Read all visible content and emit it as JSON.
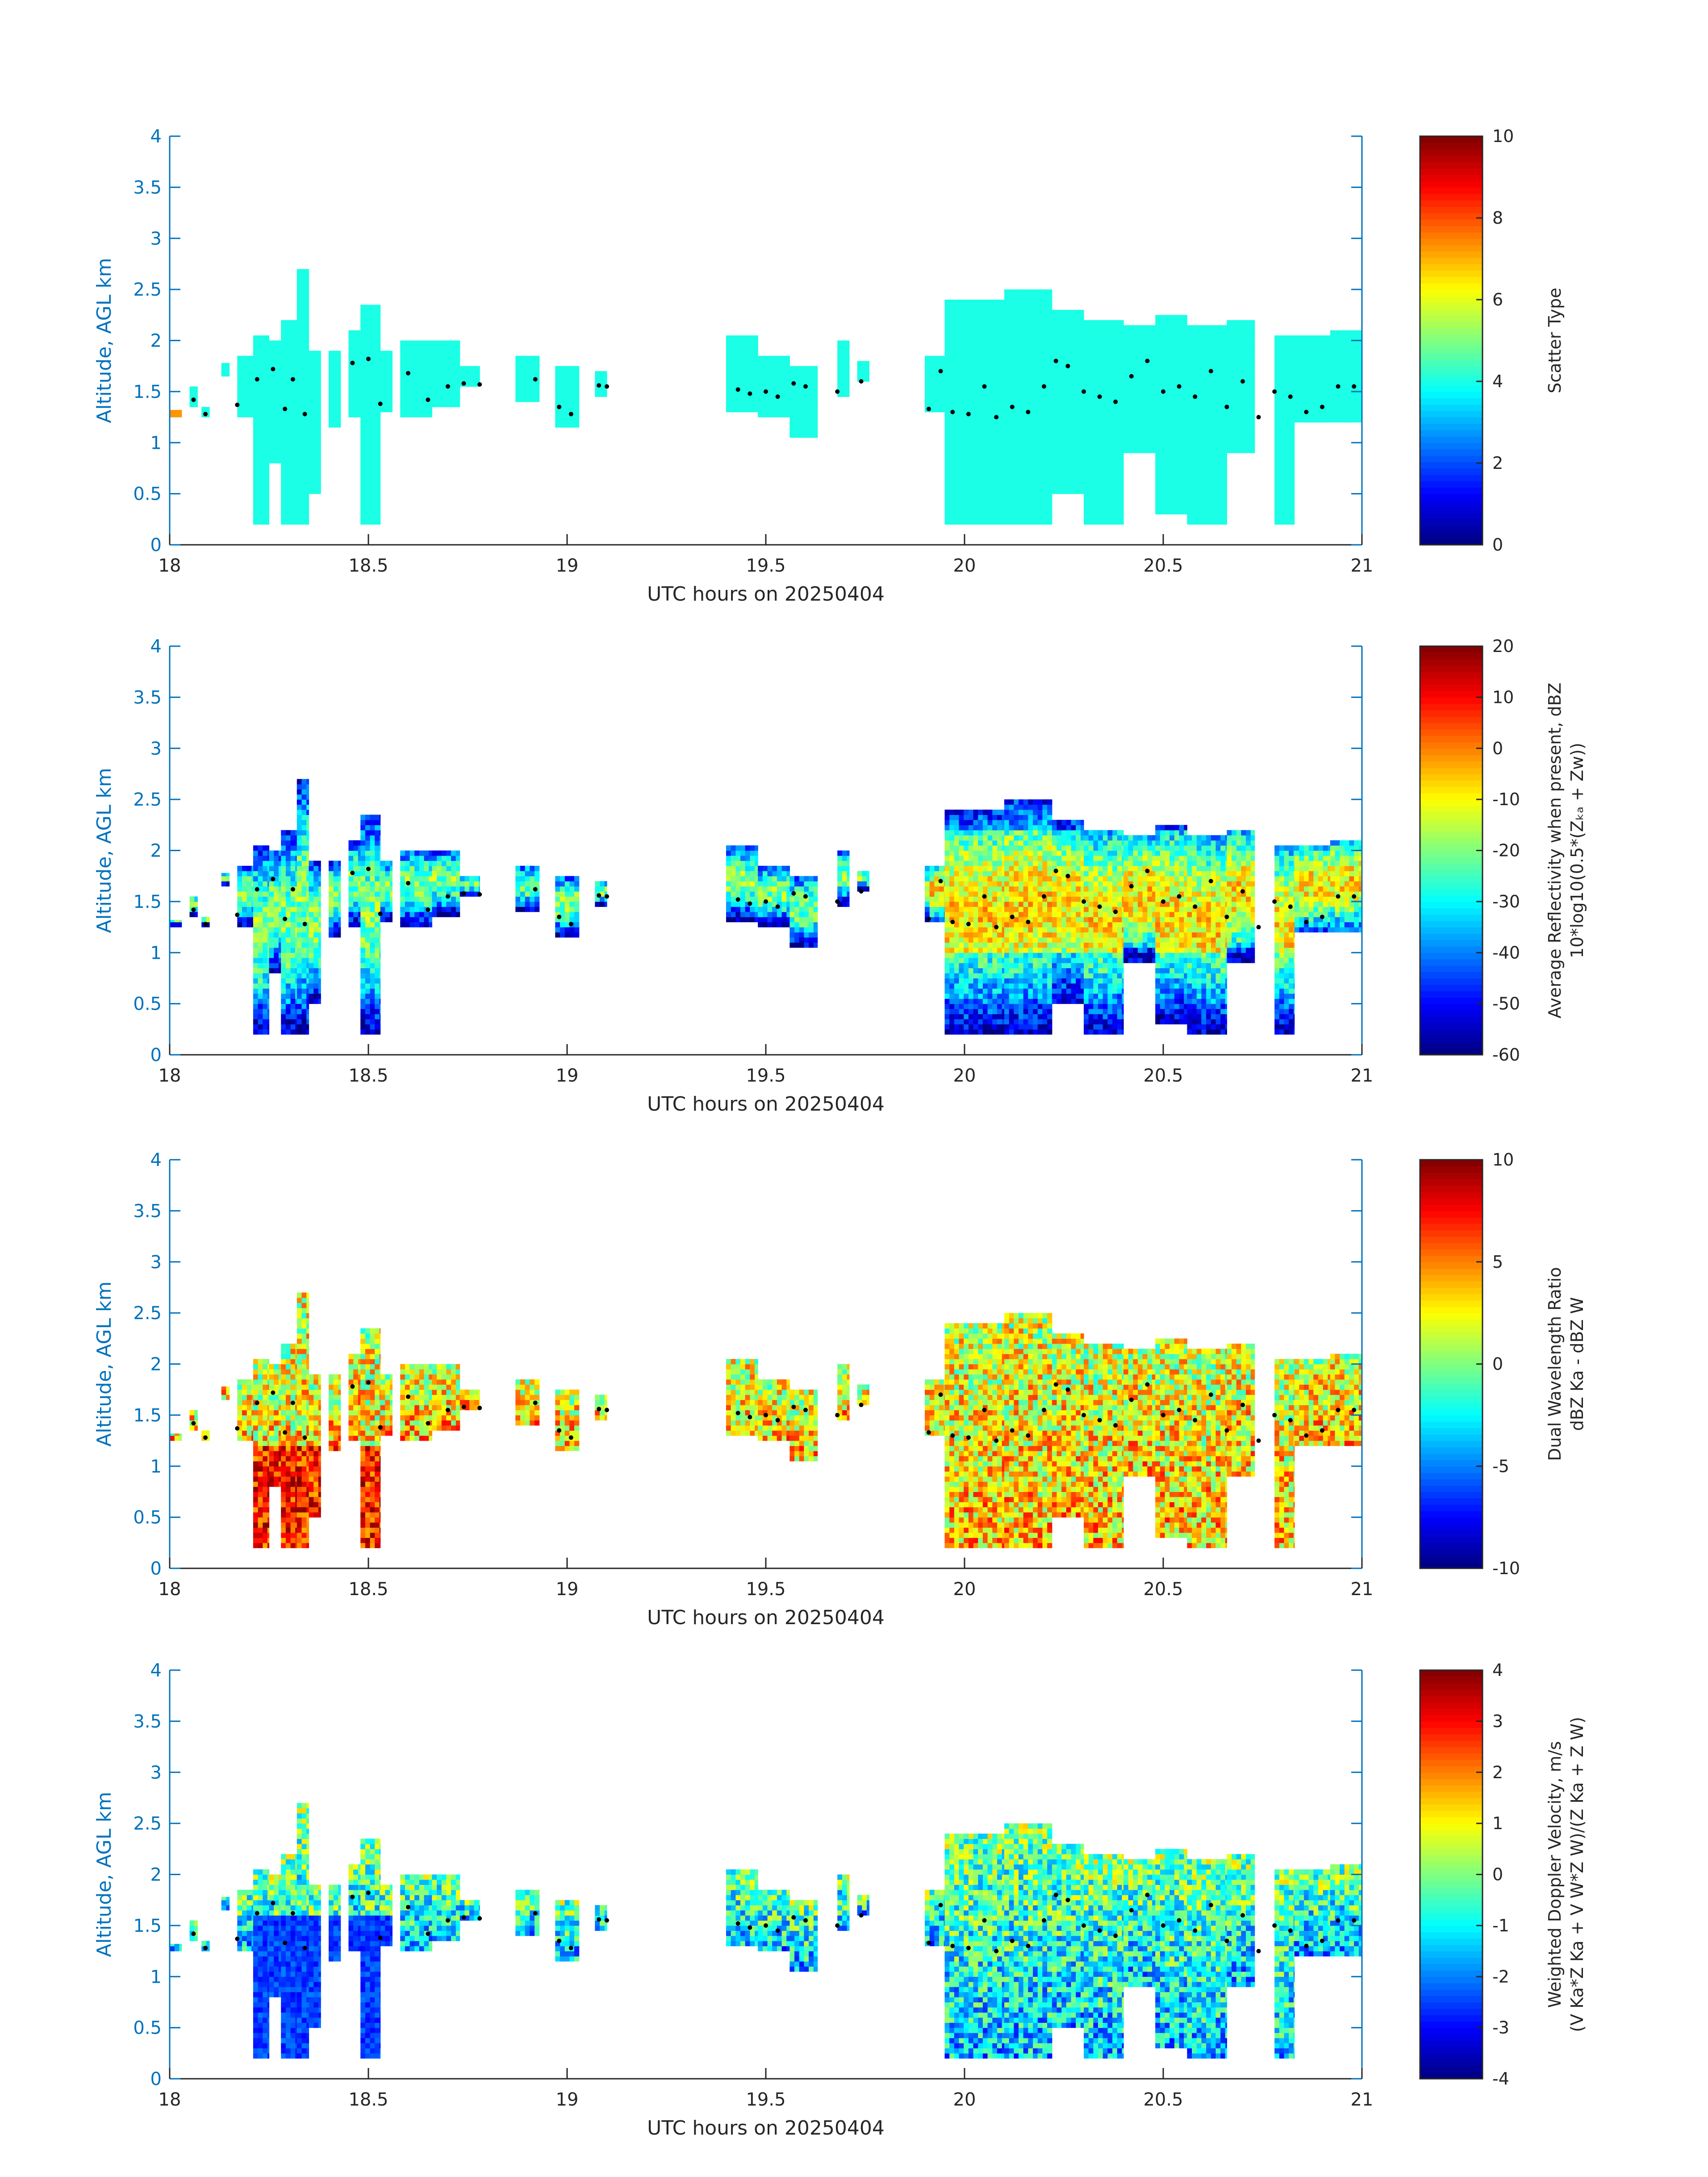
{
  "chart_data": [
    {
      "type": "heatmap",
      "xlabel": "UTC hours on 20250404",
      "ylabel": "Altitude, AGL km",
      "xlim": [
        18,
        21
      ],
      "ylim": [
        0,
        4
      ],
      "xticks": [
        "18",
        "18.5",
        "19",
        "19.5",
        "20",
        "20.5",
        "21"
      ],
      "yticks": [
        "0",
        "0.5",
        "1",
        "1.5",
        "2",
        "2.5",
        "3",
        "3.5",
        "4"
      ],
      "colorbar": {
        "label": "Scatter Type",
        "label2": "",
        "range": [
          0,
          10
        ],
        "ticks": [
          "0",
          "2",
          "4",
          "6",
          "8",
          "10"
        ]
      },
      "field": "scatter_type"
    },
    {
      "type": "heatmap",
      "xlabel": "UTC hours on 20250404",
      "ylabel": "Altitude, AGL km",
      "xlim": [
        18,
        21
      ],
      "ylim": [
        0,
        4
      ],
      "xticks": [
        "18",
        "18.5",
        "19",
        "19.5",
        "20",
        "20.5",
        "21"
      ],
      "yticks": [
        "0",
        "0.5",
        "1",
        "1.5",
        "2",
        "2.5",
        "3",
        "3.5",
        "4"
      ],
      "colorbar": {
        "label": "Average Reflectivity when present, dBZ",
        "label2": "10*log10(0.5*(Zₖₐ + Zᴡ))",
        "range": [
          -60,
          20
        ],
        "ticks": [
          "-60",
          "-50",
          "-40",
          "-30",
          "-20",
          "-10",
          "0",
          "10",
          "20"
        ]
      },
      "field": "reflectivity"
    },
    {
      "type": "heatmap",
      "xlabel": "UTC hours on 20250404",
      "ylabel": "Altitude, AGL km",
      "xlim": [
        18,
        21
      ],
      "ylim": [
        0,
        4
      ],
      "xticks": [
        "18",
        "18.5",
        "19",
        "19.5",
        "20",
        "20.5",
        "21"
      ],
      "yticks": [
        "0",
        "0.5",
        "1",
        "1.5",
        "2",
        "2.5",
        "3",
        "3.5",
        "4"
      ],
      "colorbar": {
        "label": "Dual Wavelength Ratio",
        "label2": "dBZ Ka - dBZ W",
        "range": [
          -10,
          10
        ],
        "ticks": [
          "-10",
          "-5",
          "0",
          "5",
          "10"
        ]
      },
      "field": "dwr"
    },
    {
      "type": "heatmap",
      "xlabel": "UTC hours on 20250404",
      "ylabel": "Altitude, AGL km",
      "xlim": [
        18,
        21
      ],
      "ylim": [
        0,
        4
      ],
      "xticks": [
        "18",
        "18.5",
        "19",
        "19.5",
        "20",
        "20.5",
        "21"
      ],
      "yticks": [
        "0",
        "0.5",
        "1",
        "1.5",
        "2",
        "2.5",
        "3",
        "3.5",
        "4"
      ],
      "colorbar": {
        "label": "Weighted Doppler Velocity, m/s",
        "label2": "(V Ka*Z Ka + V W*Z W)/(Z Ka + Z W)",
        "range": [
          -4,
          4
        ],
        "ticks": [
          "-4",
          "-3",
          "-2",
          "-1",
          "0",
          "1",
          "2",
          "3",
          "4"
        ]
      },
      "field": "velocity"
    }
  ],
  "cloud_segments": [
    {
      "x0": 18.0,
      "x1": 18.03,
      "bottom": 1.25,
      "top": 1.32
    },
    {
      "x0": 18.05,
      "x1": 18.07,
      "bottom": 1.35,
      "top": 1.55
    },
    {
      "x0": 18.08,
      "x1": 18.1,
      "bottom": 1.25,
      "top": 1.35
    },
    {
      "x0": 18.13,
      "x1": 18.15,
      "bottom": 1.65,
      "top": 1.78
    },
    {
      "x0": 18.17,
      "x1": 18.21,
      "bottom": 1.25,
      "top": 1.85
    },
    {
      "x0": 18.21,
      "x1": 18.25,
      "bottom": 0.2,
      "top": 2.05
    },
    {
      "x0": 18.25,
      "x1": 18.28,
      "bottom": 0.8,
      "top": 2.0
    },
    {
      "x0": 18.28,
      "x1": 18.32,
      "bottom": 0.2,
      "top": 2.2
    },
    {
      "x0": 18.32,
      "x1": 18.35,
      "bottom": 0.2,
      "top": 2.7
    },
    {
      "x0": 18.35,
      "x1": 18.38,
      "bottom": 0.5,
      "top": 1.9
    },
    {
      "x0": 18.4,
      "x1": 18.43,
      "bottom": 1.15,
      "top": 1.9
    },
    {
      "x0": 18.45,
      "x1": 18.48,
      "bottom": 1.25,
      "top": 2.1
    },
    {
      "x0": 18.48,
      "x1": 18.53,
      "bottom": 0.2,
      "top": 2.35
    },
    {
      "x0": 18.53,
      "x1": 18.56,
      "bottom": 1.3,
      "top": 1.9
    },
    {
      "x0": 18.58,
      "x1": 18.66,
      "bottom": 1.25,
      "top": 2.0
    },
    {
      "x0": 18.66,
      "x1": 18.73,
      "bottom": 1.35,
      "top": 2.0
    },
    {
      "x0": 18.73,
      "x1": 18.78,
      "bottom": 1.55,
      "top": 1.75
    },
    {
      "x0": 18.87,
      "x1": 18.93,
      "bottom": 1.4,
      "top": 1.85
    },
    {
      "x0": 18.97,
      "x1": 19.03,
      "bottom": 1.15,
      "top": 1.75
    },
    {
      "x0": 19.07,
      "x1": 19.1,
      "bottom": 1.45,
      "top": 1.7
    },
    {
      "x0": 19.4,
      "x1": 19.48,
      "bottom": 1.3,
      "top": 2.05
    },
    {
      "x0": 19.48,
      "x1": 19.56,
      "bottom": 1.25,
      "top": 1.85
    },
    {
      "x0": 19.56,
      "x1": 19.63,
      "bottom": 1.05,
      "top": 1.75
    },
    {
      "x0": 19.68,
      "x1": 19.71,
      "bottom": 1.45,
      "top": 2.0
    },
    {
      "x0": 19.73,
      "x1": 19.76,
      "bottom": 1.6,
      "top": 1.8
    },
    {
      "x0": 19.9,
      "x1": 19.95,
      "bottom": 1.3,
      "top": 1.85
    },
    {
      "x0": 19.95,
      "x1": 20.1,
      "bottom": 0.2,
      "top": 2.4
    },
    {
      "x0": 20.1,
      "x1": 20.22,
      "bottom": 0.2,
      "top": 2.5
    },
    {
      "x0": 20.22,
      "x1": 20.3,
      "bottom": 0.5,
      "top": 2.3
    },
    {
      "x0": 20.3,
      "x1": 20.4,
      "bottom": 0.2,
      "top": 2.2
    },
    {
      "x0": 20.4,
      "x1": 20.48,
      "bottom": 0.9,
      "top": 2.15
    },
    {
      "x0": 20.48,
      "x1": 20.56,
      "bottom": 0.3,
      "top": 2.25
    },
    {
      "x0": 20.56,
      "x1": 20.66,
      "bottom": 0.2,
      "top": 2.15
    },
    {
      "x0": 20.66,
      "x1": 20.73,
      "bottom": 0.9,
      "top": 2.2
    },
    {
      "x0": 20.78,
      "x1": 20.83,
      "bottom": 0.2,
      "top": 2.05
    },
    {
      "x0": 20.83,
      "x1": 20.92,
      "bottom": 1.2,
      "top": 2.05
    },
    {
      "x0": 20.92,
      "x1": 21.0,
      "bottom": 1.2,
      "top": 2.1
    }
  ],
  "cloud_base_points": [
    [
      18.06,
      1.42
    ],
    [
      18.09,
      1.28
    ],
    [
      18.17,
      1.37
    ],
    [
      18.22,
      1.62
    ],
    [
      18.26,
      1.72
    ],
    [
      18.29,
      1.33
    ],
    [
      18.31,
      1.62
    ],
    [
      18.34,
      1.28
    ],
    [
      18.46,
      1.78
    ],
    [
      18.5,
      1.82
    ],
    [
      18.53,
      1.38
    ],
    [
      18.6,
      1.68
    ],
    [
      18.65,
      1.42
    ],
    [
      18.7,
      1.55
    ],
    [
      18.74,
      1.58
    ],
    [
      18.78,
      1.57
    ],
    [
      18.92,
      1.62
    ],
    [
      18.98,
      1.35
    ],
    [
      19.01,
      1.28
    ],
    [
      19.08,
      1.56
    ],
    [
      19.1,
      1.55
    ],
    [
      19.43,
      1.52
    ],
    [
      19.46,
      1.48
    ],
    [
      19.5,
      1.5
    ],
    [
      19.53,
      1.45
    ],
    [
      19.57,
      1.58
    ],
    [
      19.6,
      1.55
    ],
    [
      19.68,
      1.5
    ],
    [
      19.74,
      1.6
    ],
    [
      19.91,
      1.33
    ],
    [
      19.94,
      1.7
    ],
    [
      19.97,
      1.3
    ],
    [
      20.01,
      1.28
    ],
    [
      20.05,
      1.55
    ],
    [
      20.08,
      1.25
    ],
    [
      20.12,
      1.35
    ],
    [
      20.16,
      1.3
    ],
    [
      20.2,
      1.55
    ],
    [
      20.23,
      1.8
    ],
    [
      20.26,
      1.75
    ],
    [
      20.3,
      1.5
    ],
    [
      20.34,
      1.45
    ],
    [
      20.38,
      1.4
    ],
    [
      20.42,
      1.65
    ],
    [
      20.46,
      1.8
    ],
    [
      20.5,
      1.5
    ],
    [
      20.54,
      1.55
    ],
    [
      20.58,
      1.45
    ],
    [
      20.62,
      1.7
    ],
    [
      20.66,
      1.35
    ],
    [
      20.7,
      1.6
    ],
    [
      20.74,
      1.25
    ],
    [
      20.78,
      1.5
    ],
    [
      20.82,
      1.45
    ],
    [
      20.86,
      1.3
    ],
    [
      20.9,
      1.35
    ],
    [
      20.94,
      1.55
    ],
    [
      20.98,
      1.55
    ]
  ]
}
